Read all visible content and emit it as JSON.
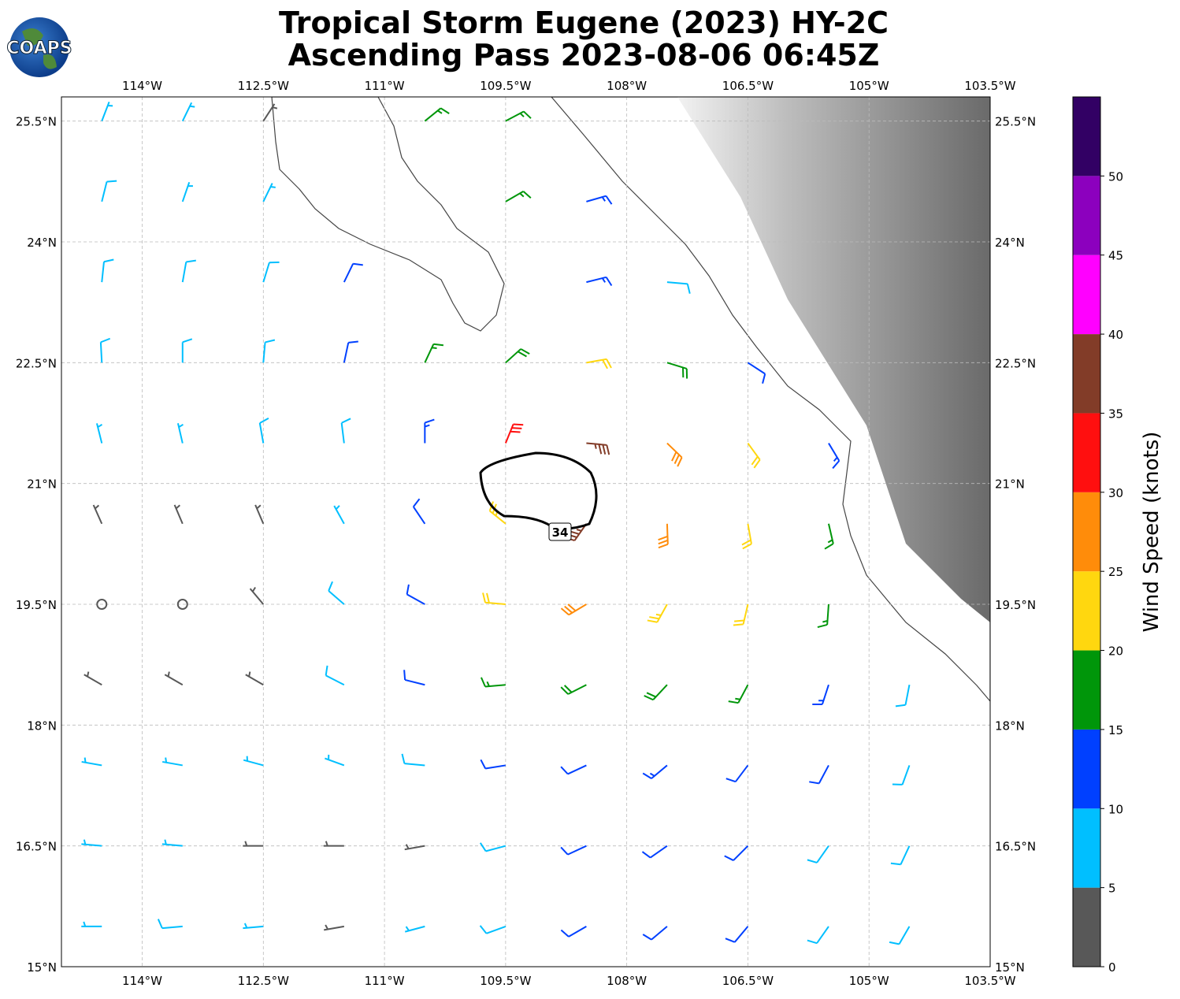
{
  "title": [
    "Tropical Storm Eugene (2023) HY-2C",
    "Ascending Pass 2023-08-06 06:45Z"
  ],
  "logo": "COAPS",
  "map": {
    "xlim": [
      -115,
      -103.5
    ],
    "ylim": [
      15,
      25.8
    ],
    "xticks": [
      {
        "value": -114,
        "label": "114°W"
      },
      {
        "value": -112.5,
        "label": "112.5°W"
      },
      {
        "value": -111,
        "label": "111°W"
      },
      {
        "value": -109.5,
        "label": "109.5°W"
      },
      {
        "value": -108,
        "label": "108°W"
      },
      {
        "value": -106.5,
        "label": "106.5°W"
      },
      {
        "value": -105,
        "label": "105°W"
      },
      {
        "value": -103.5,
        "label": "103.5°W"
      }
    ],
    "yticks": [
      {
        "value": 15,
        "label": "15°N"
      },
      {
        "value": 16.5,
        "label": "16.5°N"
      },
      {
        "value": 18,
        "label": "18°N"
      },
      {
        "value": 19.5,
        "label": "19.5°N"
      },
      {
        "value": 21,
        "label": "21°N"
      },
      {
        "value": 22.5,
        "label": "22.5°N"
      },
      {
        "value": 24,
        "label": "24°N"
      },
      {
        "value": 25.5,
        "label": "25.5°N"
      }
    ],
    "grid": true,
    "contour_label": 34
  },
  "wind": {
    "lons": [
      -114.5,
      -113.5,
      -112.5,
      -111.5,
      -110.5,
      -109.5,
      -108.5,
      -107.5,
      -106.5,
      -105.5,
      -104.5
    ],
    "lats": [
      25.5,
      24.5,
      23.5,
      22.5,
      21.5,
      20.5,
      19.5,
      18.5,
      17.5,
      16.5,
      15.5
    ],
    "speed": [
      [
        7,
        6,
        4,
        null,
        17,
        17,
        null,
        null,
        null,
        null,
        null
      ],
      [
        8,
        7,
        6,
        null,
        null,
        16,
        14,
        null,
        null,
        null,
        null
      ],
      [
        8,
        8,
        8,
        12,
        null,
        null,
        13,
        9,
        null,
        null,
        null
      ],
      [
        8,
        8,
        9,
        12,
        15,
        19,
        20,
        18,
        12,
        null,
        null
      ],
      [
        7,
        7,
        8,
        9,
        14,
        30,
        37,
        28,
        22,
        14,
        null
      ],
      [
        4,
        3,
        3,
        5,
        12,
        24,
        35,
        28,
        22,
        17,
        null
      ],
      [
        2,
        2,
        3,
        8,
        12,
        22,
        28,
        24,
        20,
        16,
        null
      ],
      [
        3,
        3,
        4,
        8,
        11,
        15,
        19,
        18,
        16,
        13,
        9
      ],
      [
        6,
        5,
        6,
        5,
        8,
        10,
        12,
        13,
        12,
        10,
        8
      ],
      [
        6,
        5,
        4,
        4,
        3,
        8,
        10,
        11,
        11,
        9,
        8
      ],
      [
        7,
        9,
        6,
        4,
        5,
        8,
        10,
        12,
        11,
        9,
        8
      ]
    ],
    "direction": [
      [
        21,
        26,
        33,
        null,
        51,
        62,
        null,
        null,
        null,
        null,
        null
      ],
      [
        14,
        19,
        26,
        null,
        null,
        60,
        74,
        null,
        null,
        null,
        null
      ],
      [
        6,
        10,
        17,
        26,
        null,
        null,
        76,
        95,
        null,
        null,
        null
      ],
      [
        357,
        0,
        5,
        12,
        25,
        48,
        80,
        107,
        123,
        null,
        null
      ],
      [
        346,
        347,
        350,
        353,
        0,
        22,
        95,
        134,
        144,
        149,
        null
      ],
      [
        336,
        337,
        337,
        331,
        326,
        309,
        215,
        178,
        170,
        167,
        null
      ],
      [
        320,
        320,
        320,
        311,
        299,
        275,
        239,
        209,
        193,
        184,
        null
      ],
      [
        300,
        300,
        300,
        297,
        284,
        265,
        243,
        223,
        208,
        198,
        191
      ],
      [
        280,
        280,
        285,
        290,
        275,
        261,
        245,
        230,
        217,
        208,
        200
      ],
      [
        275,
        275,
        270,
        270,
        260,
        255,
        245,
        235,
        225,
        215,
        205
      ],
      [
        270,
        265,
        265,
        260,
        255,
        250,
        240,
        230,
        220,
        215,
        210
      ]
    ]
  },
  "colorbar": {
    "label": "Wind Speed (knots)",
    "bounds": [
      0,
      5,
      10,
      15,
      20,
      25,
      30,
      35,
      40,
      45,
      50,
      55
    ],
    "colors": [
      "#585858",
      "#00bfff",
      "#0040ff",
      "#00960a",
      "#ffd70f",
      "#ff8c0a",
      "#ff0f0f",
      "#823c28",
      "#ff00ff",
      "#8c00be",
      "#320064"
    ],
    "ticks": [
      0,
      5,
      10,
      15,
      20,
      25,
      30,
      35,
      40,
      45,
      50
    ]
  }
}
